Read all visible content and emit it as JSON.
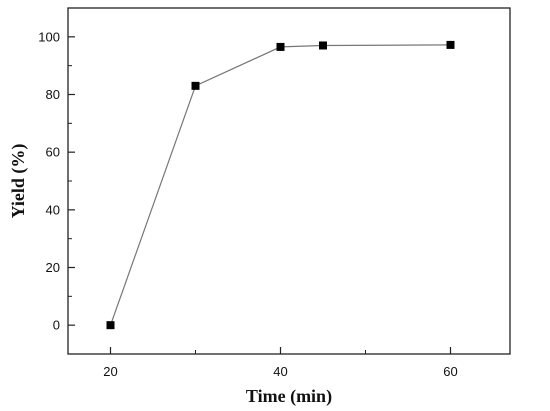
{
  "chart_data": {
    "type": "line",
    "xlabel": "Time (min)",
    "ylabel": "Yield (%)",
    "xlim": [
      15,
      67
    ],
    "ylim": [
      -10,
      110
    ],
    "x_ticks": [
      20,
      40,
      60
    ],
    "y_ticks": [
      0,
      20,
      40,
      60,
      80,
      100
    ],
    "grid": false,
    "series": [
      {
        "x": [
          20,
          30,
          40,
          45,
          60
        ],
        "y": [
          0,
          83,
          96.5,
          97,
          97.2
        ],
        "marker": "square",
        "line_color": "#777777",
        "marker_color": "#000000"
      }
    ]
  }
}
